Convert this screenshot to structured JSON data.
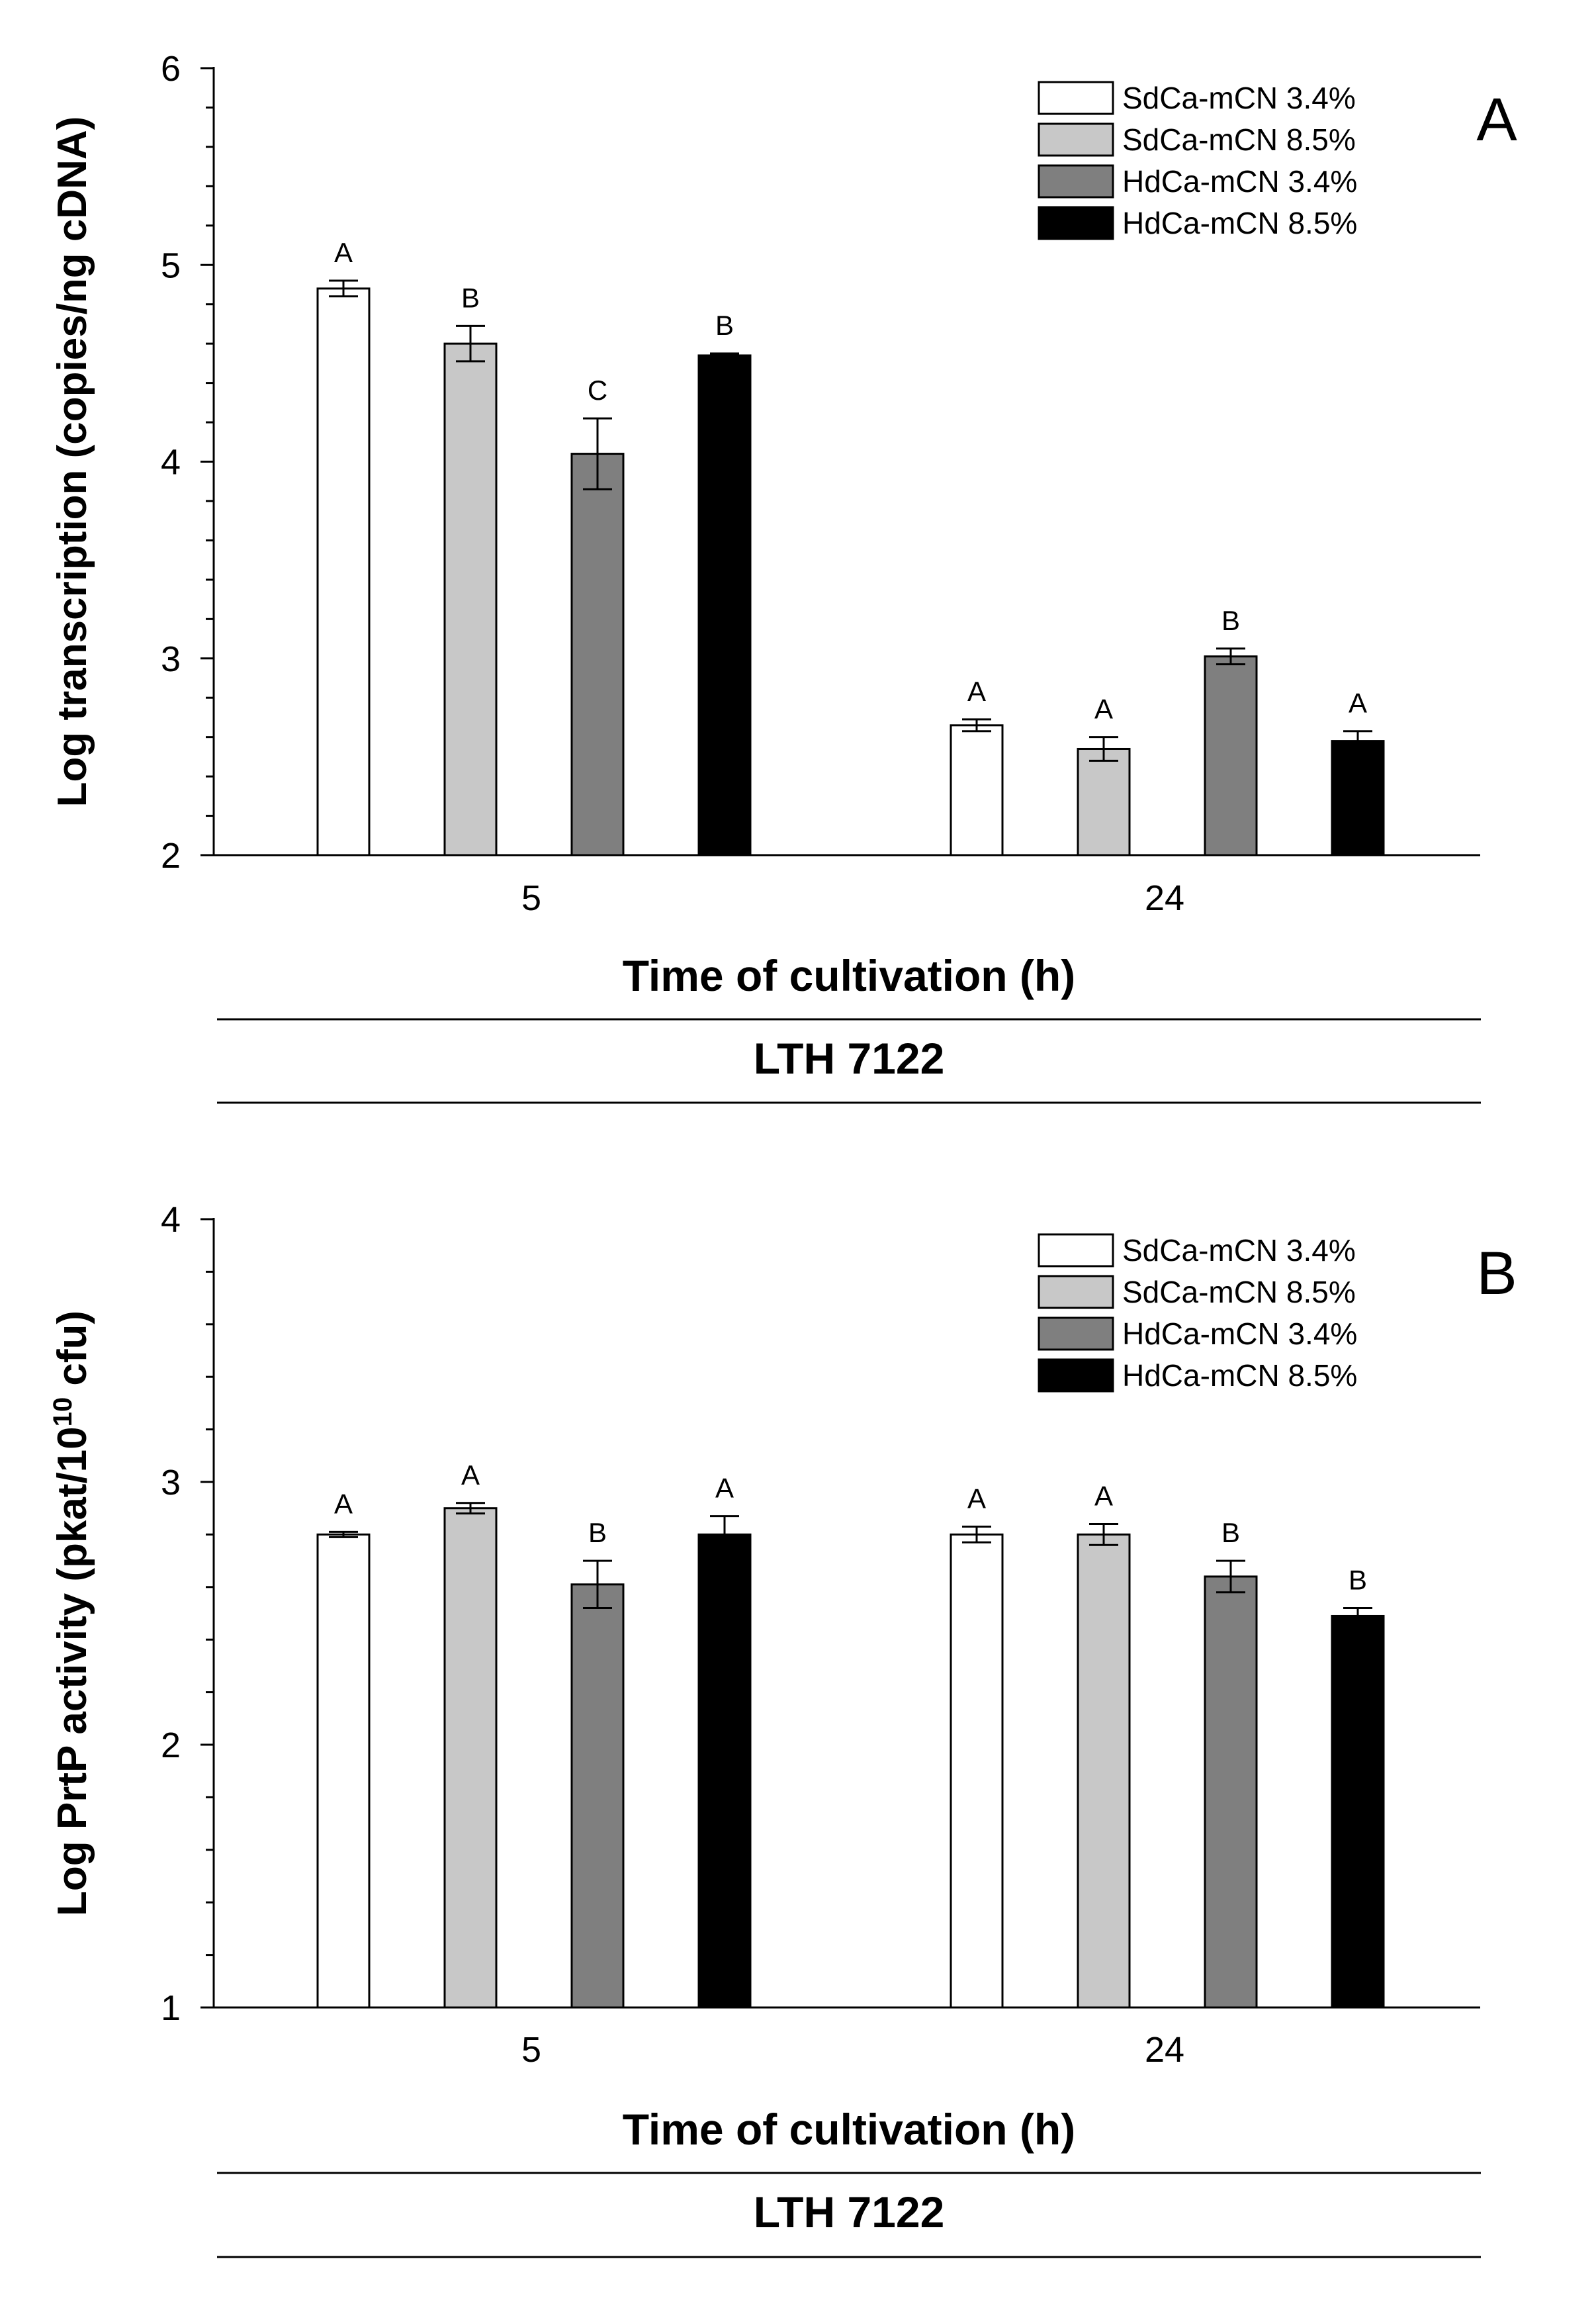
{
  "legend": [
    {
      "label": "SdCa-mCN 3.4%",
      "color": "#ffffff"
    },
    {
      "label": "SdCa-mCN 8.5%",
      "color": "#c8c8c8"
    },
    {
      "label": "HdCa-mCN 3.4%",
      "color": "#7f7f7f"
    },
    {
      "label": "HdCa-mCN 8.5%",
      "color": "#000000"
    }
  ],
  "chart_data": [
    {
      "type": "bar",
      "panel": "A",
      "ylabel": "Log transcription (copies/ng cDNA)",
      "xlabel": "Time of cultivation (h)",
      "strain": "LTH 7122",
      "categories": [
        "5",
        "24"
      ],
      "ylim": [
        2,
        6
      ],
      "yticks": [
        "2",
        "3",
        "4",
        "5",
        "6"
      ],
      "series": [
        {
          "name": "SdCa-mCN 3.4%",
          "values": [
            4.88,
            2.66
          ],
          "errors": [
            0.04,
            0.03
          ],
          "sig": [
            "A",
            "A"
          ]
        },
        {
          "name": "SdCa-mCN 8.5%",
          "values": [
            4.6,
            2.54
          ],
          "errors": [
            0.09,
            0.06
          ],
          "sig": [
            "B",
            "A"
          ]
        },
        {
          "name": "HdCa-mCN 3.4%",
          "values": [
            4.04,
            3.01
          ],
          "errors": [
            0.18,
            0.04
          ],
          "sig": [
            "C",
            "B"
          ]
        },
        {
          "name": "HdCa-mCN 8.5%",
          "values": [
            4.54,
            2.58
          ],
          "errors": [
            0.01,
            0.05
          ],
          "sig": [
            "B",
            "A"
          ]
        }
      ]
    },
    {
      "type": "bar",
      "panel": "B",
      "ylabel": "Log PrtP activity (pkat/10",
      "ylabel_sup": "10",
      "ylabel_end": " cfu)",
      "xlabel": "Time of cultivation (h)",
      "strain": "LTH 7122",
      "categories": [
        "5",
        "24"
      ],
      "ylim": [
        1,
        4
      ],
      "yticks": [
        "1",
        "2",
        "3",
        "4"
      ],
      "series": [
        {
          "name": "SdCa-mCN 3.4%",
          "values": [
            2.8,
            2.8
          ],
          "errors": [
            0.01,
            0.03
          ],
          "sig": [
            "A",
            "A"
          ]
        },
        {
          "name": "SdCa-mCN 8.5%",
          "values": [
            2.9,
            2.8
          ],
          "errors": [
            0.02,
            0.04
          ],
          "sig": [
            "A",
            "A"
          ]
        },
        {
          "name": "HdCa-mCN 3.4%",
          "values": [
            2.61,
            2.64
          ],
          "errors": [
            0.09,
            0.06
          ],
          "sig": [
            "B",
            "B"
          ]
        },
        {
          "name": "HdCa-mCN 8.5%",
          "values": [
            2.8,
            2.49
          ],
          "errors": [
            0.07,
            0.03
          ],
          "sig": [
            "A",
            "B"
          ]
        }
      ]
    }
  ]
}
